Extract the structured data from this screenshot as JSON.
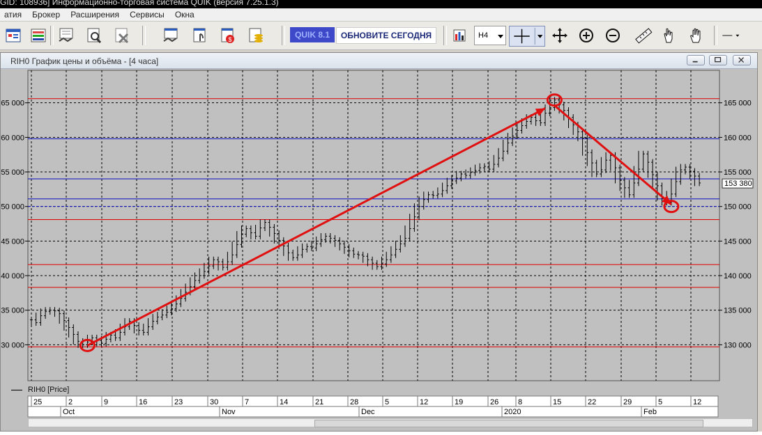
{
  "window": {
    "title_fragment": "GID: 108936] Информационно-торговая система QUIK (версия 7.25.1.3)"
  },
  "menu": [
    "атия",
    "Брокер",
    "Расширения",
    "Сервисы",
    "Окна"
  ],
  "toolbar": {
    "badge": "QUIK 8.1",
    "update_label": "ОБНОВИТЕ СЕГОДНЯ",
    "timeframe": "H4",
    "icons": [
      "new-window-icon",
      "table-icon",
      "deal-icon",
      "search-doc-icon",
      "delete-doc-icon",
      "order-icon",
      "stop-order-icon",
      "portfolio-icon",
      "coins-icon",
      "bar-chart-icon",
      "crosshair-icon",
      "move-icon",
      "zoom-in-icon",
      "zoom-out-icon",
      "ruler-icon",
      "pointer-hand-icon",
      "drag-hand-icon",
      "line-tool-icon"
    ]
  },
  "chart_window": {
    "title": "RIH0 График цены и объёма - [4 часа]",
    "legend": "RIH0 [Price]",
    "price_label": "153 380"
  },
  "chart_data": {
    "type": "candlestick",
    "instrument": "RIH0",
    "timeframe": "4 часа",
    "y_tick_labels_right": [
      "130 000",
      "135 000",
      "140 000",
      "145 000",
      "150 000",
      "155 000",
      "160 000",
      "165 000"
    ],
    "y_tick_labels_left": [
      "30 000",
      "35 000",
      "40 000",
      "45 000",
      "50 000",
      "55 000",
      "60 000",
      "65 000"
    ],
    "ylim": [
      124800,
      169700
    ],
    "x_tick_labels": [
      "25",
      "2",
      "9",
      "16",
      "23",
      "30",
      "7",
      "14",
      "21",
      "28",
      "5",
      "12",
      "19",
      "26",
      "8",
      "15",
      "22",
      "29",
      "5",
      "12"
    ],
    "x_month_labels": [
      "Oct",
      "Nov",
      "Dec",
      "2020",
      "Feb"
    ],
    "last_price": 153380,
    "grid": true,
    "series": [
      {
        "name": "RIH0 [Price]",
        "ohlc_points": [
          [
            0,
            133600
          ],
          [
            1,
            133200
          ],
          [
            2,
            134200
          ],
          [
            3,
            134800
          ],
          [
            4,
            135000
          ],
          [
            5,
            134900
          ],
          [
            6,
            134500
          ],
          [
            7,
            133500
          ],
          [
            8,
            132500
          ],
          [
            9,
            131500
          ],
          [
            10,
            130500
          ],
          [
            11,
            130000
          ],
          [
            12,
            130400
          ],
          [
            13,
            131000
          ],
          [
            14,
            130600
          ],
          [
            15,
            130200
          ],
          [
            16,
            130800
          ],
          [
            17,
            131400
          ],
          [
            18,
            131000
          ],
          [
            19,
            131800
          ],
          [
            20,
            132600
          ],
          [
            21,
            133400
          ],
          [
            22,
            132800
          ],
          [
            23,
            132100
          ],
          [
            24,
            131800
          ],
          [
            25,
            132600
          ],
          [
            26,
            133400
          ],
          [
            27,
            134000
          ],
          [
            28,
            134300
          ],
          [
            29,
            134700
          ],
          [
            30,
            135200
          ],
          [
            31,
            135900
          ],
          [
            32,
            136700
          ],
          [
            33,
            137600
          ],
          [
            34,
            138400
          ],
          [
            35,
            139300
          ],
          [
            36,
            140000
          ],
          [
            37,
            140600
          ],
          [
            38,
            141400
          ],
          [
            39,
            142300
          ],
          [
            40,
            142000
          ],
          [
            41,
            141200
          ],
          [
            42,
            142000
          ],
          [
            43,
            143000
          ],
          [
            44,
            144500
          ],
          [
            45,
            146000
          ],
          [
            46,
            146800
          ],
          [
            47,
            146200
          ],
          [
            48,
            145700
          ],
          [
            49,
            146900
          ],
          [
            50,
            147700
          ],
          [
            51,
            147000
          ],
          [
            52,
            146100
          ],
          [
            53,
            145100
          ],
          [
            54,
            144300
          ],
          [
            55,
            143300
          ],
          [
            56,
            142600
          ],
          [
            57,
            143000
          ],
          [
            58,
            143800
          ],
          [
            59,
            144200
          ],
          [
            60,
            144000
          ],
          [
            61,
            144600
          ],
          [
            62,
            145200
          ],
          [
            63,
            145700
          ],
          [
            64,
            145400
          ],
          [
            65,
            145100
          ],
          [
            66,
            144600
          ],
          [
            67,
            144100
          ],
          [
            68,
            143600
          ],
          [
            69,
            143100
          ],
          [
            70,
            143000
          ],
          [
            71,
            142800
          ],
          [
            72,
            142300
          ],
          [
            73,
            141800
          ],
          [
            74,
            141300
          ],
          [
            75,
            141700
          ],
          [
            76,
            142300
          ],
          [
            77,
            143000
          ],
          [
            78,
            143800
          ],
          [
            79,
            144600
          ],
          [
            80,
            145400
          ],
          [
            81,
            146800
          ],
          [
            82,
            148500
          ],
          [
            83,
            150000
          ],
          [
            84,
            151000
          ],
          [
            85,
            151700
          ],
          [
            86,
            151600
          ],
          [
            87,
            151800
          ],
          [
            88,
            152300
          ],
          [
            89,
            153000
          ],
          [
            90,
            153700
          ],
          [
            91,
            154100
          ],
          [
            92,
            154700
          ],
          [
            93,
            154500
          ],
          [
            94,
            154900
          ],
          [
            95,
            155200
          ],
          [
            96,
            155600
          ],
          [
            97,
            155800
          ],
          [
            98,
            155400
          ],
          [
            99,
            156100
          ],
          [
            100,
            157000
          ],
          [
            101,
            158000
          ],
          [
            102,
            159200
          ],
          [
            103,
            160200
          ],
          [
            104,
            161000
          ],
          [
            105,
            161700
          ],
          [
            106,
            162300
          ],
          [
            107,
            162900
          ],
          [
            108,
            162400
          ],
          [
            109,
            162100
          ],
          [
            110,
            163500
          ],
          [
            111,
            164300
          ],
          [
            112,
            165400
          ],
          [
            113,
            164700
          ],
          [
            114,
            163900
          ],
          [
            115,
            162900
          ],
          [
            116,
            161800
          ],
          [
            117,
            160800
          ],
          [
            118,
            159900
          ],
          [
            119,
            157800
          ],
          [
            120,
            156300
          ],
          [
            121,
            154700
          ],
          [
            122,
            155300
          ],
          [
            123,
            156700
          ],
          [
            124,
            157400
          ],
          [
            125,
            155600
          ],
          [
            126,
            153800
          ],
          [
            127,
            152700
          ],
          [
            128,
            151700
          ],
          [
            129,
            153400
          ],
          [
            130,
            155400
          ],
          [
            131,
            157600
          ],
          [
            132,
            156400
          ],
          [
            133,
            154600
          ],
          [
            134,
            153000
          ],
          [
            135,
            151300
          ],
          [
            136,
            150600
          ],
          [
            137,
            151800
          ],
          [
            138,
            153600
          ],
          [
            139,
            155300
          ],
          [
            140,
            155700
          ],
          [
            141,
            155100
          ],
          [
            142,
            154400
          ],
          [
            143,
            153400
          ]
        ]
      }
    ],
    "horizontal_lines": [
      {
        "price": 165600,
        "color": "#e00000"
      },
      {
        "price": 159800,
        "color": "#1010c0"
      },
      {
        "price": 154000,
        "color": "#1010c0"
      },
      {
        "price": 151100,
        "color": "#1010c0"
      },
      {
        "price": 150000,
        "color": "#1010c0",
        "style": "dashed"
      },
      {
        "price": 148100,
        "color": "#e00000"
      },
      {
        "price": 141600,
        "color": "#e00000"
      },
      {
        "price": 138300,
        "color": "#e00000"
      },
      {
        "price": 129700,
        "color": "#e00000"
      }
    ],
    "annotations": {
      "color": "#e01010",
      "arrows": [
        {
          "from": [
            12,
            129900
          ],
          "to": [
            110,
            164200
          ]
        },
        {
          "from": [
            112,
            164600
          ],
          "to": [
            137,
            150300
          ]
        }
      ],
      "circles": [
        {
          "at": [
            12,
            129900
          ]
        },
        {
          "at": [
            112,
            165400
          ]
        },
        {
          "at": [
            137,
            150000
          ]
        }
      ]
    }
  }
}
